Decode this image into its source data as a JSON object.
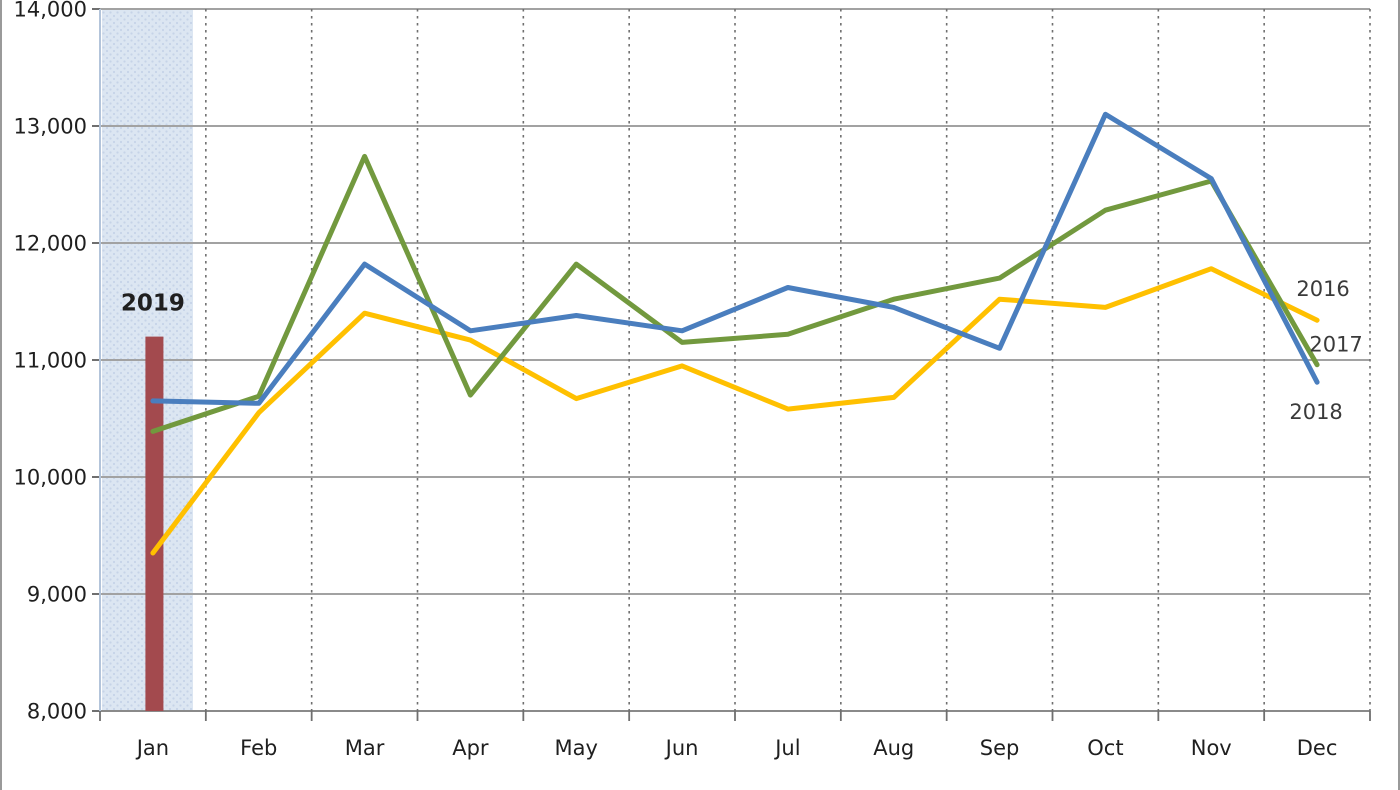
{
  "chart_data": {
    "type": "line",
    "title": "",
    "xlabel": "",
    "ylabel": "",
    "categories": [
      "Jan",
      "Feb",
      "Mar",
      "Apr",
      "May",
      "Jun",
      "Jul",
      "Aug",
      "Sep",
      "Oct",
      "Nov",
      "Dec"
    ],
    "series": [
      {
        "name": "2016",
        "color": "#FFC000",
        "values": [
          9350,
          10550,
          11400,
          11170,
          10670,
          10950,
          10580,
          10680,
          11520,
          11450,
          11780,
          11340
        ]
      },
      {
        "name": "2017",
        "color": "#72993E",
        "values": [
          10390,
          10690,
          12740,
          10700,
          11820,
          11150,
          11220,
          11520,
          11700,
          12280,
          12530,
          10960
        ]
      },
      {
        "name": "2018",
        "color": "#4A7EBE",
        "values": [
          10650,
          10630,
          11820,
          11250,
          11380,
          11250,
          11620,
          11450,
          11100,
          13100,
          12550,
          10810
        ]
      }
    ],
    "bar_annotation": {
      "name": "2019",
      "category": "Jan",
      "value": 11200,
      "bar_color": "#A34A4E",
      "label_color": "#C0262C"
    },
    "highlight_band": {
      "category": "Jan",
      "color": "#DCE6F2",
      "dot_color": "#C6D3E8"
    },
    "ylim": [
      8000,
      14000
    ],
    "ytick_step": 1000,
    "ytick_labels": [
      "8,000",
      "9,000",
      "10,000",
      "11,000",
      "12,000",
      "13,000",
      "14,000"
    ],
    "grid": {
      "horizontal": "solid",
      "vertical": "dashed"
    },
    "legend_position": "line-end-labels",
    "series_label_offsets": {
      "2016": [
        6,
        -24
      ],
      "2017": [
        19,
        -13
      ],
      "2018": [
        -1,
        37
      ]
    },
    "frame_edge_color": "#9A9A9A"
  }
}
